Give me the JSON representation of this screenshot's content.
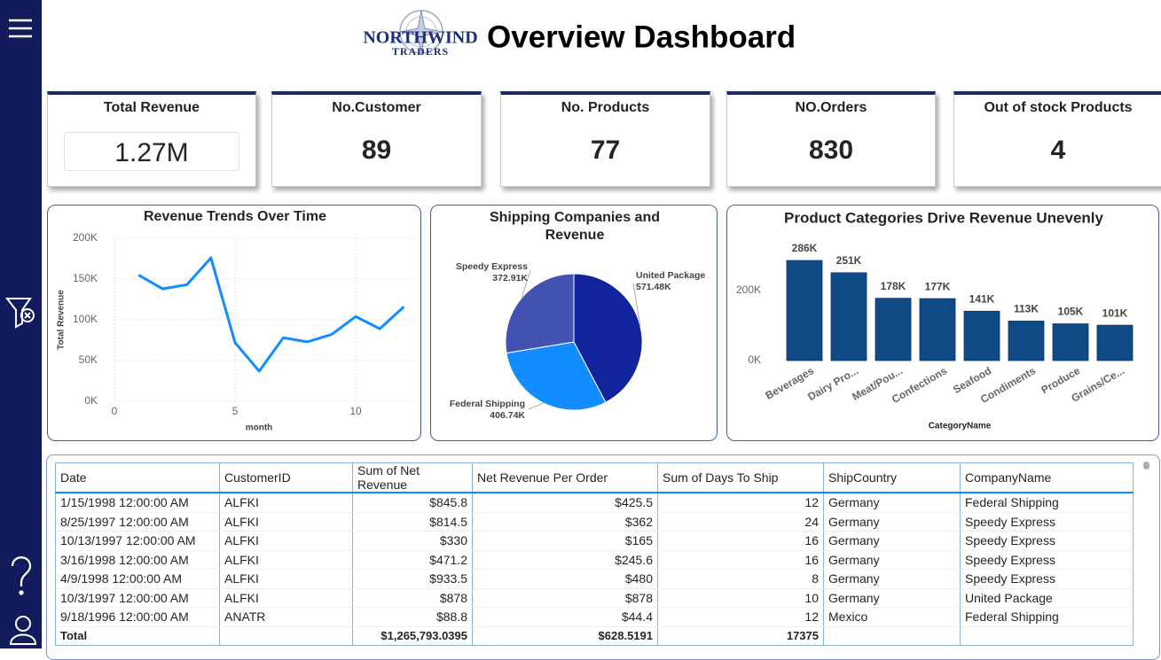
{
  "header": {
    "logo": {
      "name": "NORTHWIND",
      "tagline": "TRADERS"
    },
    "title": "Overview Dashboard"
  },
  "kpis": [
    {
      "label": "Total Revenue",
      "value": "1.27M"
    },
    {
      "label": "No.Customer",
      "value": 89
    },
    {
      "label": "No. Products",
      "value": 77
    },
    {
      "label": "NO.Orders",
      "value": 830
    },
    {
      "label": "Out of stock Products",
      "value": 4
    }
  ],
  "chart_data": [
    {
      "type": "line",
      "title": "Revenue Trends Over Time",
      "x_label": "month",
      "y_label": "Total Revenue",
      "x": [
        1,
        2,
        3,
        4,
        5,
        6,
        7,
        8,
        9,
        10,
        11,
        12
      ],
      "values": [
        155000,
        138000,
        143000,
        176000,
        72000,
        37000,
        78000,
        73000,
        82000,
        104000,
        89000,
        116000
      ],
      "color": "#118dff",
      "grid": true,
      "xlim": [
        0,
        12.5
      ],
      "xticks": [
        0,
        5,
        10
      ],
      "ylim": [
        0,
        200000
      ],
      "yticks": [
        {
          "value": 0,
          "label": "0K"
        },
        {
          "value": 50000,
          "label": "50K"
        },
        {
          "value": 100000,
          "label": "100K"
        },
        {
          "value": 150000,
          "label": "150K"
        },
        {
          "value": 200000,
          "label": "200K"
        }
      ]
    },
    {
      "type": "pie",
      "title": "Shipping Companies and Revenue",
      "categories": [
        "United Package",
        "Federal Shipping",
        "Speedy Express"
      ],
      "values": [
        571480,
        406740,
        372910
      ],
      "value_labels": [
        "571.48K",
        "406.74K",
        "372.91K"
      ],
      "colors": [
        "#12239e",
        "#118dff",
        "#4351b0"
      ]
    },
    {
      "type": "bar",
      "title": "Product Categories Drive Revenue Unevenly",
      "x_label": "CategoryName",
      "categories": [
        "Beverages",
        "Dairy Pro...",
        "Meat/Pou...",
        "Confections",
        "Seafood",
        "Condiments",
        "Produce",
        "Grains/Ce..."
      ],
      "values": [
        286000,
        251000,
        178000,
        177000,
        141000,
        113000,
        105000,
        101000
      ],
      "value_labels": [
        "286K",
        "251K",
        "178K",
        "177K",
        "141K",
        "113K",
        "105K",
        "101K"
      ],
      "color": "#0f4a86",
      "ylim": [
        0,
        300000
      ],
      "yticks": [
        {
          "value": 0,
          "label": "0K"
        },
        {
          "value": 200000,
          "label": "200K"
        }
      ]
    }
  ],
  "table": {
    "columns": [
      "Date",
      "CustomerID",
      "Sum of Net Revenue",
      "Net Revenue Per Order",
      "Sum of Days To Ship",
      "ShipCountry",
      "CompanyName"
    ],
    "rows": [
      [
        "1/15/1998 12:00:00 AM",
        "ALFKI",
        "$845.8",
        "$425.5",
        12,
        "Germany",
        "Federal Shipping"
      ],
      [
        "8/25/1997 12:00:00 AM",
        "ALFKI",
        "$814.5",
        "$362",
        24,
        "Germany",
        "Speedy Express"
      ],
      [
        "10/13/1997 12:00:00 AM",
        "ALFKI",
        "$330",
        "$165",
        16,
        "Germany",
        "Speedy Express"
      ],
      [
        "3/16/1998 12:00:00 AM",
        "ALFKI",
        "$471.2",
        "$245.6",
        16,
        "Germany",
        "Speedy Express"
      ],
      [
        "4/9/1998 12:00:00 AM",
        "ALFKI",
        "$933.5",
        "$480",
        8,
        "Germany",
        "Speedy Express"
      ],
      [
        "10/3/1997 12:00:00 AM",
        "ALFKI",
        "$878",
        "$878",
        10,
        "Germany",
        "United Package"
      ],
      [
        "9/18/1996 12:00:00 AM",
        "ANATR",
        "$88.8",
        "$44.4",
        12,
        "Mexico",
        "Federal Shipping"
      ]
    ],
    "total": {
      "label": "Total",
      "sum_of_net_revenue": "$1,265,793.0395",
      "net_revenue_per_order": "$628.5191",
      "sum_of_days_to_ship": 17375
    }
  }
}
